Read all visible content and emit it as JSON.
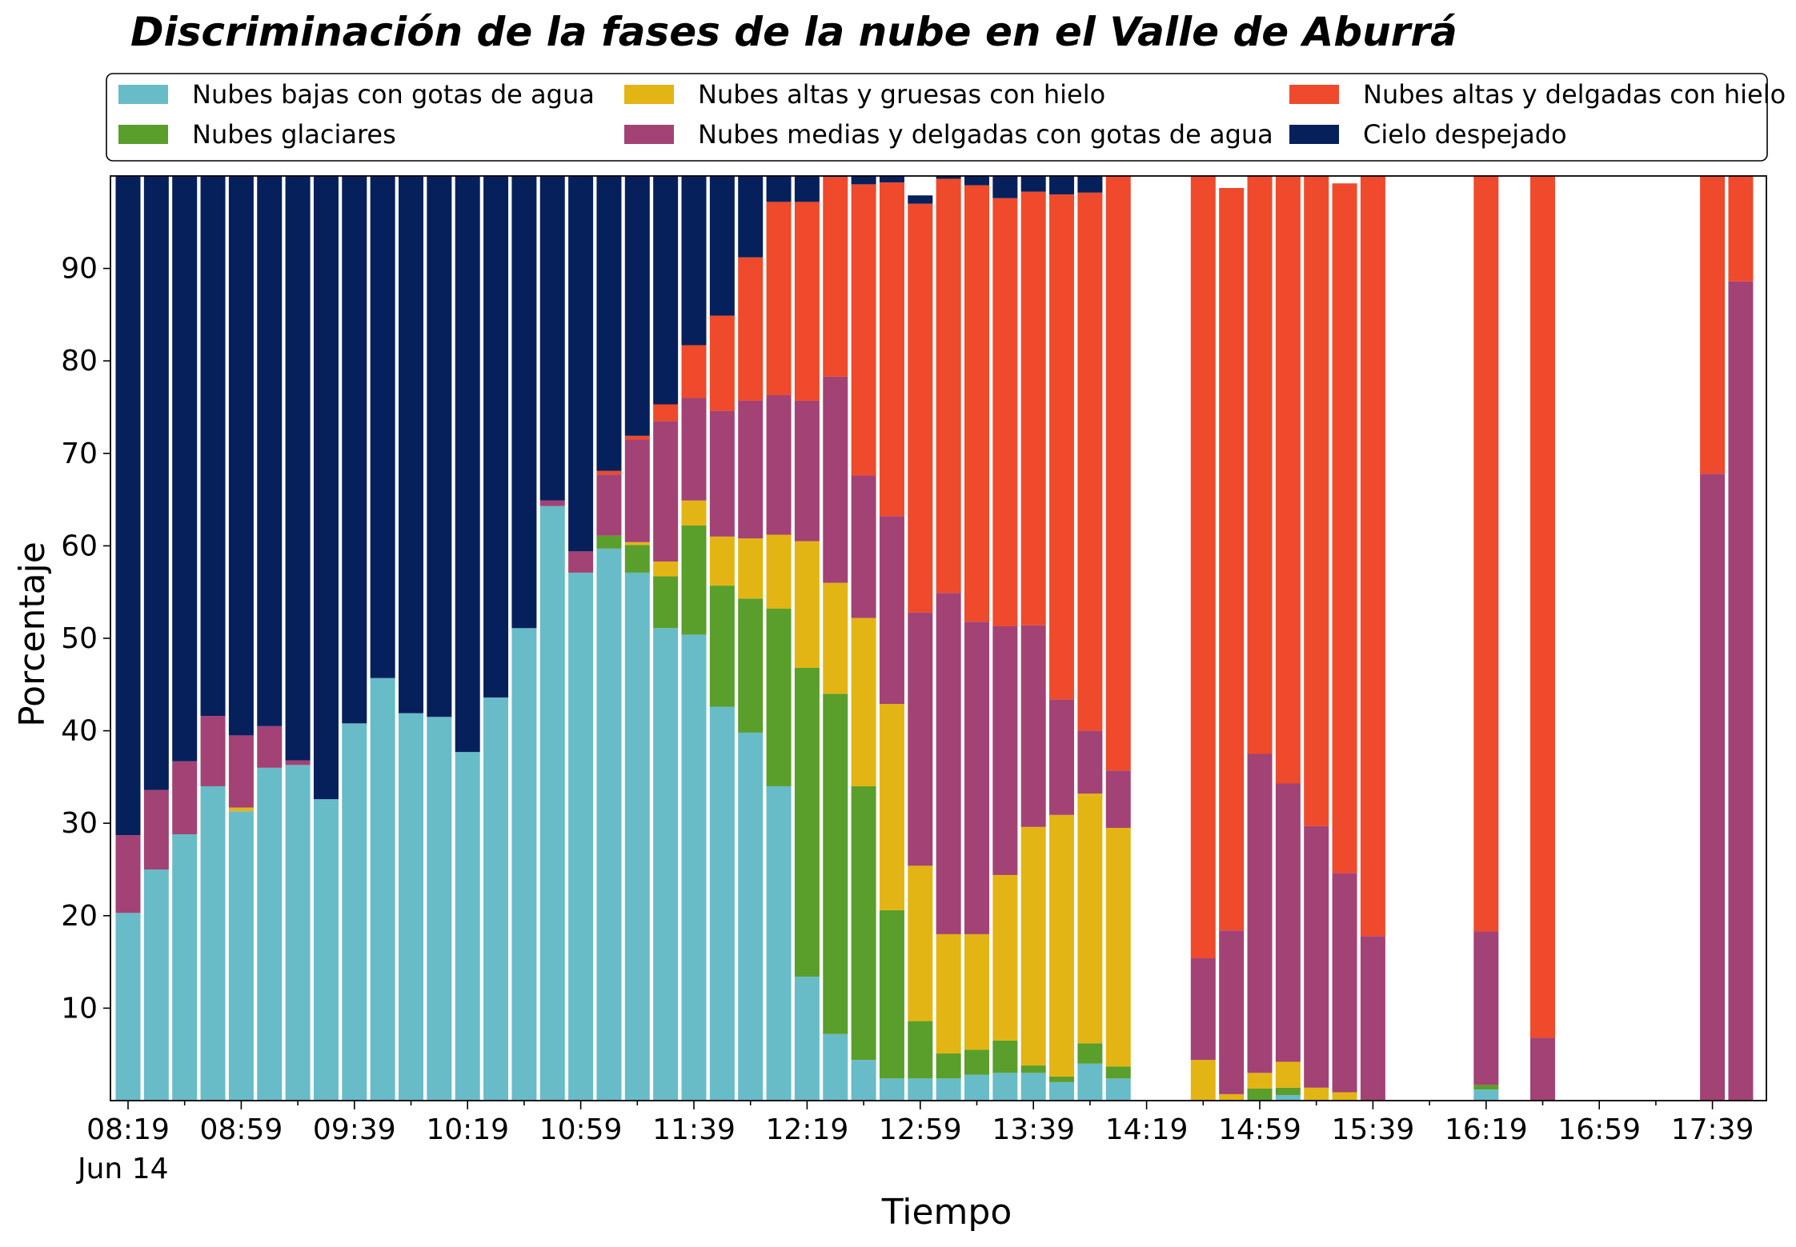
{
  "chart_data": {
    "type": "bar",
    "stacked": true,
    "title": "Discriminación de la fases de la nube en el Valle de Aburrá",
    "xlabel": "Tiempo",
    "ylabel": "Porcentaje",
    "ylim": [
      0,
      100
    ],
    "y_ticks": [
      10,
      20,
      30,
      40,
      50,
      60,
      70,
      80,
      90
    ],
    "x_ticks": [
      "08:19",
      "08:59",
      "09:39",
      "10:19",
      "10:59",
      "11:39",
      "12:19",
      "12:59",
      "13:39",
      "14:19",
      "14:59",
      "15:39",
      "16:19",
      "16:59",
      "17:39"
    ],
    "x_date_label": "Jun 14",
    "grid": false,
    "legend_position": "top",
    "x_start": "08:19",
    "x_interval_minutes": 10,
    "categories": [
      "08:19",
      "08:29",
      "08:39",
      "08:49",
      "08:59",
      "09:09",
      "09:19",
      "09:29",
      "09:39",
      "09:49",
      "09:59",
      "10:09",
      "10:19",
      "10:29",
      "10:39",
      "10:49",
      "10:59",
      "11:09",
      "11:19",
      "11:29",
      "11:39",
      "11:49",
      "11:59",
      "12:09",
      "12:19",
      "12:29",
      "12:39",
      "12:49",
      "12:59",
      "13:09",
      "13:19",
      "13:29",
      "13:39",
      "13:49",
      "13:59",
      "14:09",
      "14:19",
      "14:29",
      "14:39",
      "14:49",
      "14:59",
      "15:09",
      "15:19",
      "15:29",
      "15:39",
      "15:49",
      "15:59",
      "16:09",
      "16:19",
      "16:29",
      "16:39",
      "16:49",
      "16:59",
      "17:09",
      "17:19",
      "17:29",
      "17:39",
      "17:49"
    ],
    "series": [
      {
        "name": "Nubes bajas con gotas de agua",
        "color": "#67BCC8",
        "values": [
          20.3,
          25,
          28.8,
          34,
          31.3,
          36,
          36.3,
          32.6,
          40.8,
          45.7,
          41.9,
          41.5,
          37.7,
          43.6,
          51.1,
          64.3,
          57.1,
          59.7,
          57.1,
          51.1,
          50.4,
          42.6,
          39.8,
          34,
          13.4,
          7.2,
          4.4,
          2.4,
          2.4,
          2.4,
          2.8,
          3,
          3,
          2,
          4,
          2.4,
          0,
          0,
          0,
          0,
          0,
          0.6,
          0,
          0,
          0,
          0,
          0,
          0,
          1.2,
          0,
          0,
          0,
          0,
          0,
          0,
          0,
          0,
          0
        ]
      },
      {
        "name": "Nubes glaciares",
        "color": "#5A9E2B",
        "values": [
          0,
          0,
          0,
          0,
          0,
          0,
          0,
          0,
          0,
          0,
          0,
          0,
          0,
          0,
          0,
          0,
          0,
          1.4,
          3,
          5.6,
          11.8,
          13.1,
          14.5,
          19.2,
          33.4,
          36.8,
          29.6,
          18.2,
          6.2,
          2.7,
          2.7,
          3.5,
          0.8,
          0.6,
          2.2,
          1.3,
          0,
          0,
          0,
          0,
          1.3,
          0.8,
          0,
          0,
          0,
          0,
          0,
          0,
          0.5,
          0,
          0,
          0,
          0,
          0,
          0,
          0,
          0,
          0
        ]
      },
      {
        "name": "Nubes altas y gruesas con hielo",
        "color": "#E3B514",
        "values": [
          0,
          0,
          0,
          0,
          0.4,
          0,
          0,
          0,
          0,
          0,
          0,
          0,
          0,
          0,
          0,
          0,
          0,
          0,
          0.3,
          1.6,
          2.7,
          5.3,
          6.5,
          8,
          13.7,
          12,
          18.2,
          22.3,
          16.8,
          12.9,
          12.5,
          17.9,
          25.8,
          28.3,
          27,
          25.8,
          0,
          0,
          4.4,
          0.7,
          1.7,
          2.8,
          1.4,
          0.9,
          0,
          0,
          0,
          0,
          0,
          0,
          0,
          0,
          0,
          0,
          0,
          0,
          0,
          0
        ]
      },
      {
        "name": "Nubes medias y delgadas con gotas de agua",
        "color": "#A34275",
        "values": [
          8.4,
          8.6,
          7.9,
          7.6,
          7.8,
          4.5,
          0.5,
          0,
          0,
          0,
          0,
          0,
          0,
          0,
          0,
          0.6,
          2.3,
          6.6,
          11.1,
          15.2,
          11.1,
          13.6,
          14.9,
          15.1,
          15.2,
          22.3,
          15.4,
          20.3,
          27.4,
          36.9,
          33.8,
          26.9,
          21.8,
          12.5,
          6.8,
          6.2,
          0,
          0,
          11,
          17.7,
          34.5,
          30.1,
          28.3,
          23.7,
          17.8,
          0,
          0,
          0,
          16.6,
          0,
          6.8,
          0,
          0,
          0,
          0,
          0,
          67.8,
          88.6
        ]
      },
      {
        "name": "Nubes altas y delgadas con hielo",
        "color": "#EE4A2B",
        "values": [
          0,
          0,
          0,
          0,
          0,
          0,
          0,
          0,
          0,
          0,
          0,
          0,
          0,
          0,
          0,
          0,
          0,
          0.4,
          0.4,
          1.8,
          5.7,
          10.3,
          15.5,
          20.9,
          21.5,
          21.6,
          31.5,
          36.1,
          44.2,
          44.8,
          47.2,
          46.3,
          46.9,
          54.6,
          58.2,
          64.4,
          0,
          0,
          84.6,
          80.3,
          62.5,
          66,
          71.1,
          74.6,
          82.2,
          0,
          0,
          0,
          81.8,
          0,
          93.2,
          0,
          0,
          0,
          0,
          0,
          32.2,
          11.4
        ]
      },
      {
        "name": "Cielo despejado",
        "color": "#06205C",
        "values": [
          71.3,
          66.4,
          63.3,
          58.4,
          60.5,
          59.5,
          63.2,
          67.4,
          59.2,
          54.3,
          58.1,
          58.5,
          62.3,
          56.4,
          48.9,
          35.1,
          40.6,
          31.9,
          28.1,
          24.7,
          18.3,
          15.1,
          8.8,
          3.8,
          2.8,
          0.1,
          0.9,
          0.7,
          0.9,
          0.3,
          1,
          2.4,
          1.7,
          2,
          2,
          0,
          0,
          0,
          0,
          0,
          0,
          0.3,
          0,
          0,
          0,
          0,
          0,
          0,
          0,
          0,
          0,
          0,
          0,
          0,
          0,
          0,
          0,
          0
        ]
      }
    ]
  }
}
